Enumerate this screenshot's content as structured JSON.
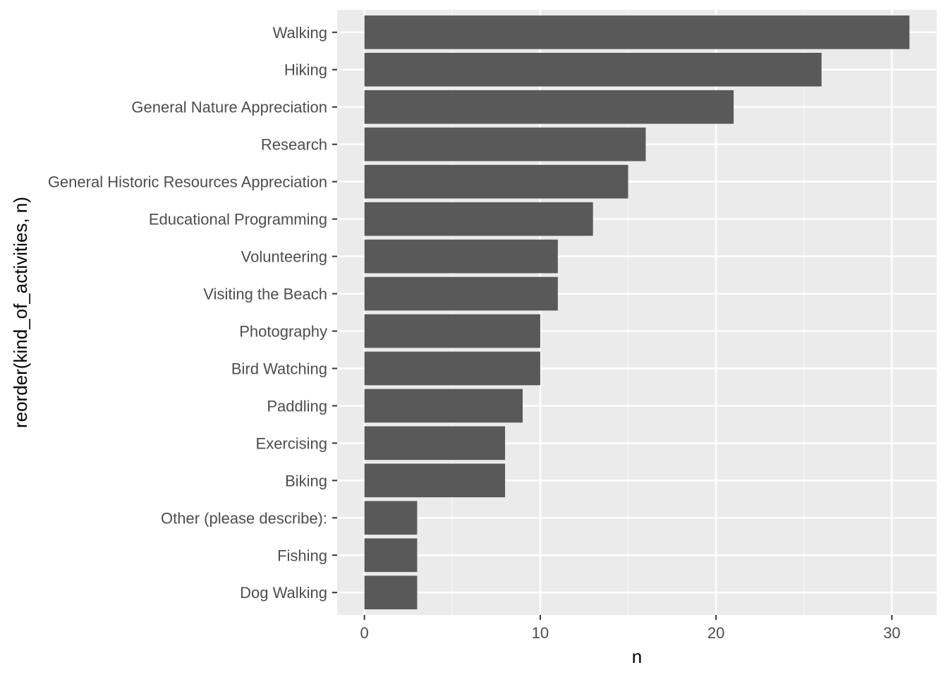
{
  "chart_data": {
    "type": "bar",
    "orientation": "horizontal",
    "title": "",
    "xlabel": "n",
    "ylabel": "reorder(kind_of_activities, n)",
    "categories": [
      "Walking",
      "Hiking",
      "General Nature Appreciation",
      "Research",
      "General Historic Resources Appreciation",
      "Educational Programming",
      "Volunteering",
      "Visiting the Beach",
      "Photography",
      "Bird Watching",
      "Paddling",
      "Exercising",
      "Biking",
      "Other (please describe):",
      "Fishing",
      "Dog Walking"
    ],
    "values": [
      31,
      26,
      21,
      16,
      15,
      13,
      11,
      11,
      10,
      10,
      9,
      8,
      8,
      3,
      3,
      3
    ],
    "xlim": [
      -1.55,
      32.55
    ],
    "x_ticks": [
      0,
      10,
      20,
      30
    ],
    "x_minor_ticks": [
      5,
      15,
      25
    ],
    "grid": true,
    "legend": "none",
    "colors": {
      "panel_background": "#ebebeb",
      "grid_major": "#ffffff",
      "grid_minor": "#f5f5f5",
      "bar_fill": "#595959",
      "tick_color": "#333333",
      "tick_label_color": "#4d4d4d",
      "axis_title_color": "#000000"
    }
  }
}
